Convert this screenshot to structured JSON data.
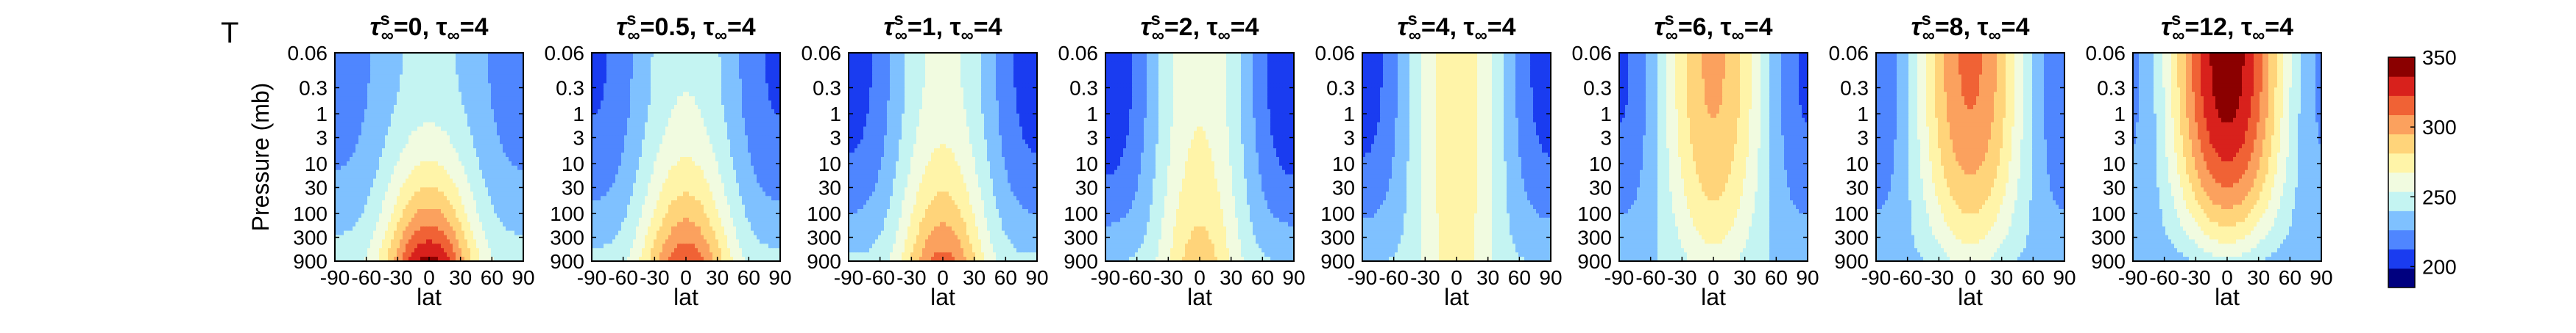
{
  "figure_label": "T",
  "colors": {
    "colormap": [
      "#00007f",
      "#1a3cf0",
      "#4f86ff",
      "#7fc1ff",
      "#c4f4f2",
      "#f1fbe0",
      "#fff4a8",
      "#ffd47a",
      "#fba15e",
      "#f06235",
      "#d8211c",
      "#8b0000"
    ],
    "frame": "#000000",
    "background": "#ffffff"
  },
  "chart_data": {
    "type": "heatmap",
    "variable": "T",
    "xlabel": "lat",
    "ylabel": "Pressure (mb)",
    "x_ticks": [
      -90,
      -60,
      -30,
      0,
      30,
      60,
      90
    ],
    "x_tick_labels": [
      "-90",
      "-60",
      "-30",
      "0",
      "30",
      "60",
      "90"
    ],
    "y_ticks": [
      0.06,
      0.3,
      1,
      3,
      10,
      30,
      100,
      300,
      900
    ],
    "y_tick_labels": [
      "0.06",
      "0.3",
      "1",
      "3",
      "10",
      "30",
      "100",
      "300",
      "900"
    ],
    "xlim": [
      -90,
      90
    ],
    "ylim": [
      0.06,
      900
    ],
    "yscale": "log",
    "y_reversed": true,
    "grid": false,
    "colorbar": {
      "range": [
        185,
        350
      ],
      "ticks": [
        200,
        250,
        300,
        350
      ],
      "tick_labels": [
        "200",
        "250",
        "300",
        "350"
      ]
    },
    "panels": [
      {
        "tau_s_inf": "0",
        "tau_inf": "4",
        "title_tau_s": "=0",
        "title_rest": ", τ",
        "title_end": "=4"
      },
      {
        "tau_s_inf": "0.5",
        "tau_inf": "4",
        "title_tau_s": "=0.5",
        "title_rest": ", τ",
        "title_end": "=4"
      },
      {
        "tau_s_inf": "1",
        "tau_inf": "4",
        "title_tau_s": "=1",
        "title_rest": ", τ",
        "title_end": "=4"
      },
      {
        "tau_s_inf": "2",
        "tau_inf": "4",
        "title_tau_s": "=2",
        "title_rest": ", τ",
        "title_end": "=4"
      },
      {
        "tau_s_inf": "4",
        "tau_inf": "4",
        "title_tau_s": "=4",
        "title_rest": ", τ",
        "title_end": "=4"
      },
      {
        "tau_s_inf": "6",
        "tau_inf": "4",
        "title_tau_s": "=6",
        "title_rest": ", τ",
        "title_end": "=4"
      },
      {
        "tau_s_inf": "8",
        "tau_inf": "4",
        "title_tau_s": "=8",
        "title_rest": ", τ",
        "title_end": "=4"
      },
      {
        "tau_s_inf": "12",
        "tau_inf": "4",
        "title_tau_s": "=12",
        "title_rest": ", τ",
        "title_end": "=4"
      }
    ],
    "field_parameters": [
      {
        "equator_top": 245,
        "pole_top": 218,
        "equator_surface": 342,
        "pole_surface": 248,
        "surface_width": 0.55
      },
      {
        "equator_top": 252,
        "pole_top": 210,
        "equator_surface": 322,
        "pole_surface": 245,
        "surface_width": 0.55
      },
      {
        "equator_top": 258,
        "pole_top": 205,
        "equator_surface": 315,
        "pole_surface": 243,
        "surface_width": 0.5
      },
      {
        "equator_top": 265,
        "pole_top": 200,
        "equator_surface": 290,
        "pole_surface": 240,
        "surface_width": 0.45
      },
      {
        "equator_top": 275,
        "pole_top": 205,
        "equator_surface": 275,
        "pole_surface": 240,
        "surface_width": 0.4
      },
      {
        "equator_top": 298,
        "pole_top": 210,
        "equator_surface": 262,
        "pole_surface": 238,
        "surface_width": 0.4
      },
      {
        "equator_top": 312,
        "pole_top": 215,
        "equator_surface": 258,
        "pole_surface": 236,
        "surface_width": 0.4
      },
      {
        "equator_top": 345,
        "pole_top": 225,
        "equator_surface": 250,
        "pole_surface": 232,
        "surface_width": 0.4
      }
    ]
  }
}
